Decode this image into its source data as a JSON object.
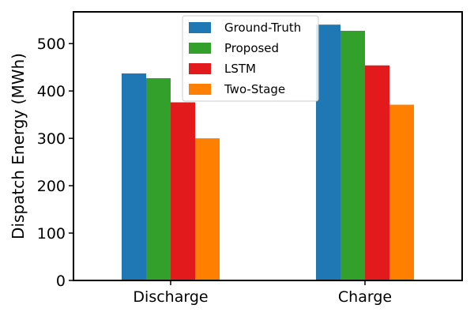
{
  "chart_data": {
    "type": "bar",
    "categories": [
      "Discharge",
      "Charge"
    ],
    "series": [
      {
        "name": "Ground-Truth",
        "values": [
          437,
          540
        ],
        "color": "#1f77b4"
      },
      {
        "name": "Proposed",
        "values": [
          427,
          527
        ],
        "color": "#33a02c"
      },
      {
        "name": "LSTM",
        "values": [
          376,
          454
        ],
        "color": "#e31a1c"
      },
      {
        "name": "Two-Stage",
        "values": [
          300,
          371
        ],
        "color": "#ff7f00"
      }
    ],
    "ylabel": "Dispatch Energy (MWh)",
    "xlabel": "",
    "title": "",
    "ylim": [
      0,
      567
    ],
    "yticks": [
      0,
      100,
      200,
      300,
      400,
      500
    ],
    "legend_position": "top-center",
    "grid": false
  }
}
